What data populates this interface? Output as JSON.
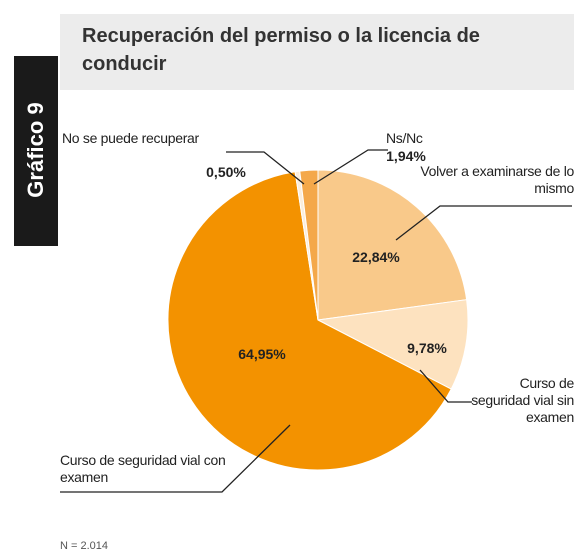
{
  "chart_data": {
    "type": "pie",
    "badge": "Gráfico 9",
    "title": "Recuperación del permiso o la licencia de conducir",
    "categories": [
      "Volver a examinarse de lo mismo",
      "Curso de seguridad vial sin examen",
      "Curso de seguridad vial con examen",
      "No se puede recuperar",
      "Ns/Nc"
    ],
    "values": [
      22.84,
      9.78,
      64.95,
      0.5,
      1.94
    ],
    "value_labels": [
      "22,84%",
      "9,78%",
      "64,95%",
      "0,50%",
      "1,94%"
    ],
    "colors": [
      "#f9c98a",
      "#fde2bf",
      "#f39200",
      "#fbeedd",
      "#f4a84a"
    ],
    "note": "N = 2.014"
  }
}
